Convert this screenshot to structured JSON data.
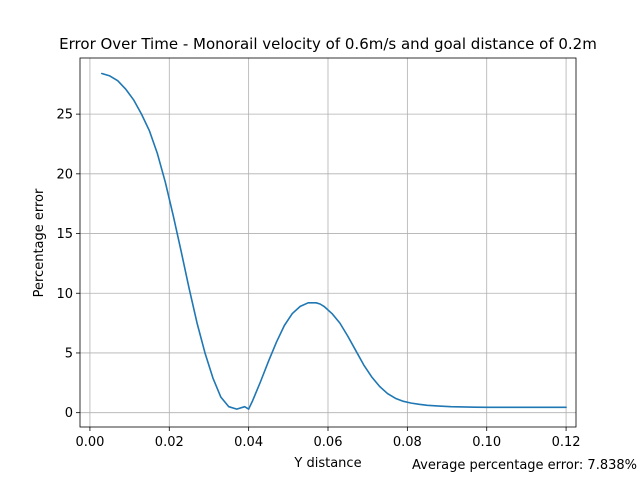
{
  "chart_data": {
    "type": "line",
    "title": "Error Over Time - Monorail velocity of 0.6m/s and goal distance of 0.2m",
    "xlabel": "Y distance",
    "ylabel": "Percentage error",
    "xlim": [
      -0.0025,
      0.1225
    ],
    "ylim": [
      -1.2,
      29.7
    ],
    "xticks": [
      0.0,
      0.02,
      0.04,
      0.06,
      0.08,
      0.1,
      0.12
    ],
    "xtick_labels": [
      "0.00",
      "0.02",
      "0.04",
      "0.06",
      "0.08",
      "0.10",
      "0.12"
    ],
    "yticks": [
      0,
      5,
      10,
      15,
      20,
      25
    ],
    "ytick_labels": [
      "0",
      "5",
      "10",
      "15",
      "20",
      "25"
    ],
    "grid": true,
    "annotation": "Average percentage error: 7.838%",
    "series": [
      {
        "color": "#1f77b4",
        "x": [
          0.003,
          0.005,
          0.007,
          0.009,
          0.011,
          0.013,
          0.015,
          0.017,
          0.019,
          0.021,
          0.023,
          0.025,
          0.027,
          0.029,
          0.031,
          0.033,
          0.035,
          0.037,
          0.039,
          0.04,
          0.041,
          0.043,
          0.045,
          0.047,
          0.049,
          0.051,
          0.053,
          0.055,
          0.057,
          0.058,
          0.059,
          0.061,
          0.063,
          0.065,
          0.067,
          0.069,
          0.071,
          0.073,
          0.075,
          0.077,
          0.079,
          0.081,
          0.083,
          0.085,
          0.088,
          0.091,
          0.094,
          0.097,
          0.1,
          0.105,
          0.11,
          0.115,
          0.12
        ],
        "y": [
          28.4,
          28.2,
          27.8,
          27.1,
          26.2,
          25.0,
          23.6,
          21.7,
          19.3,
          16.5,
          13.5,
          10.4,
          7.5,
          5.0,
          2.9,
          1.3,
          0.5,
          0.3,
          0.5,
          0.3,
          1.0,
          2.6,
          4.3,
          5.9,
          7.3,
          8.3,
          8.9,
          9.2,
          9.2,
          9.1,
          8.9,
          8.3,
          7.5,
          6.4,
          5.2,
          4.0,
          3.0,
          2.2,
          1.6,
          1.2,
          0.95,
          0.8,
          0.7,
          0.62,
          0.55,
          0.5,
          0.48,
          0.46,
          0.45,
          0.45,
          0.45,
          0.45,
          0.45
        ]
      }
    ]
  }
}
